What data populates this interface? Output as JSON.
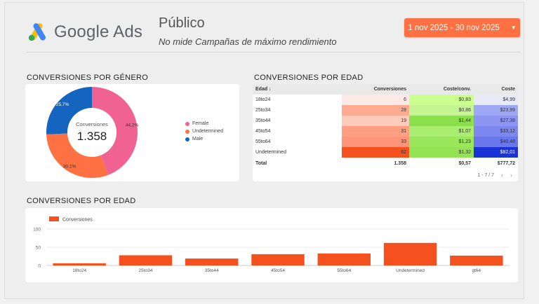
{
  "header": {
    "logo_text": "Google Ads",
    "title": "Público",
    "subtitle": "No mide Campañas de máximo rendimiento",
    "date_range": "1 nov 2025 - 30 nov 2025",
    "date_caret": "▼"
  },
  "colors": {
    "accent": "#ff7043",
    "female": "#f06292",
    "undetermined": "#ff7043",
    "male": "#1565c0",
    "bar": "#f4511e"
  },
  "gender_section": {
    "title": "CONVERSIONES POR GÉNERO",
    "center_label": "Conversiones",
    "center_value": "1.358",
    "legend": [
      "Female",
      "Undetermined",
      "Male"
    ],
    "slice_labels": [
      "44,2%",
      "30,1%",
      "25,7%"
    ]
  },
  "age_table_section": {
    "title": "CONVERSIONES POR EDAD",
    "columns": [
      "Edad ↓",
      "Conversiones",
      "Coste/conv.",
      "Coste"
    ],
    "rows": [
      {
        "age": "18to24",
        "conv": "6",
        "cpc": "$0,83",
        "cost": "$4,99",
        "c1": "#fbe9e7",
        "c2": "#ccff90",
        "c3": "#e8eaf6"
      },
      {
        "age": "25to34",
        "conv": "28",
        "cpc": "$0,86",
        "cost": "$23,99",
        "c1": "#ffab91",
        "c2": "#c5f592",
        "c3": "#9fa8f5"
      },
      {
        "age": "35to44",
        "conv": "19",
        "cpc": "$1,44",
        "cost": "$27,38",
        "c1": "#ffccbc",
        "c2": "#8ae04a",
        "c3": "#8c96f2"
      },
      {
        "age": "45to54",
        "conv": "31",
        "cpc": "$1,07",
        "cost": "$33,12",
        "c1": "#ff9e80",
        "c2": "#a9ee6f",
        "c3": "#7c87ef"
      },
      {
        "age": "55to64",
        "conv": "33",
        "cpc": "$1,23",
        "cost": "$40,48",
        "c1": "#ff9478",
        "c2": "#9ae75c",
        "c3": "#6a76ec"
      },
      {
        "age": "Undetermined",
        "conv": "62",
        "cpc": "$1,32",
        "cost": "$82,01",
        "c1": "#f4511e",
        "c2": "#94e355",
        "c3": "#1a33d6"
      }
    ],
    "total": {
      "label": "Total",
      "conv": "1.358",
      "cpc": "$0,57",
      "cost": "$777,72"
    },
    "pager": "1 - 7 / 7",
    "prev": "‹",
    "next": "›"
  },
  "bar_section": {
    "title": "CONVERSIONES POR EDAD",
    "legend": "Conversiones"
  },
  "chart_data": [
    {
      "type": "pie",
      "categories": [
        "Female",
        "Undetermined",
        "Male"
      ],
      "values": [
        44.2,
        30.1,
        25.7
      ],
      "center_text": "Conversiones 1.358"
    },
    {
      "type": "bar",
      "categories": [
        "18to24",
        "25to34",
        "35to44",
        "45to54",
        "55to64",
        "Undetermined",
        "gt64"
      ],
      "series": [
        {
          "name": "Conversiones",
          "values": [
            6,
            28,
            19,
            31,
            33,
            62,
            27
          ]
        }
      ],
      "ylim": [
        0,
        100
      ],
      "yticks": [
        "0",
        "50",
        "100"
      ],
      "grid": true,
      "legend": "top-left"
    }
  ]
}
